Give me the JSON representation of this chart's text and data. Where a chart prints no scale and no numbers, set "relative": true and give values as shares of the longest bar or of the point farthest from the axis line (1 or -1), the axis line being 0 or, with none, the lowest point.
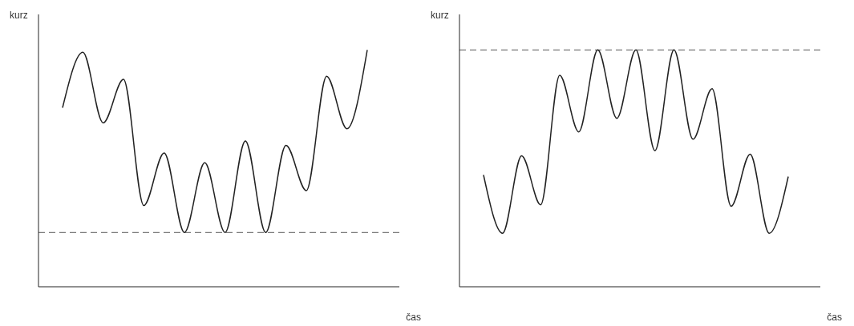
{
  "chart_data": [
    {
      "type": "line",
      "relative": true,
      "xlabel": "čas",
      "ylabel": "kurz",
      "categories": [
        null,
        null,
        null,
        null,
        null,
        null,
        null,
        null,
        null,
        null,
        null,
        null,
        null,
        null,
        null,
        null
      ],
      "series": [
        {
          "color": "#222222",
          "values": [
            0.756,
            0.99,
            0.692,
            0.876,
            0.343,
            0.565,
            0.229,
            0.524,
            0.229,
            0.616,
            0.229,
            0.597,
            0.406,
            0.889,
            0.667,
            1
          ]
        }
      ],
      "ref_lines": [
        {
          "axis": "y",
          "value": 0.229,
          "color": "#555555",
          "line_style": "dashed"
        }
      ],
      "marker": "none",
      "line_style": "solid"
    },
    {
      "type": "line",
      "relative": true,
      "xlabel": "čas",
      "ylabel": "kurz",
      "categories": [
        null,
        null,
        null,
        null,
        null,
        null,
        null,
        null,
        null,
        null,
        null,
        null,
        null,
        null,
        null,
        null,
        null
      ],
      "series": [
        {
          "color": "#222222",
          "values": [
            0.472,
            0.226,
            0.553,
            0.346,
            0.893,
            0.654,
            1,
            0.711,
            1,
            0.575,
            1,
            0.623,
            0.836,
            0.34,
            0.56,
            0.226,
            0.465
          ]
        }
      ],
      "ref_lines": [
        {
          "axis": "y",
          "value": 1,
          "color": "#555555",
          "line_style": "dashed"
        }
      ],
      "marker": "none",
      "line_style": "solid"
    }
  ]
}
